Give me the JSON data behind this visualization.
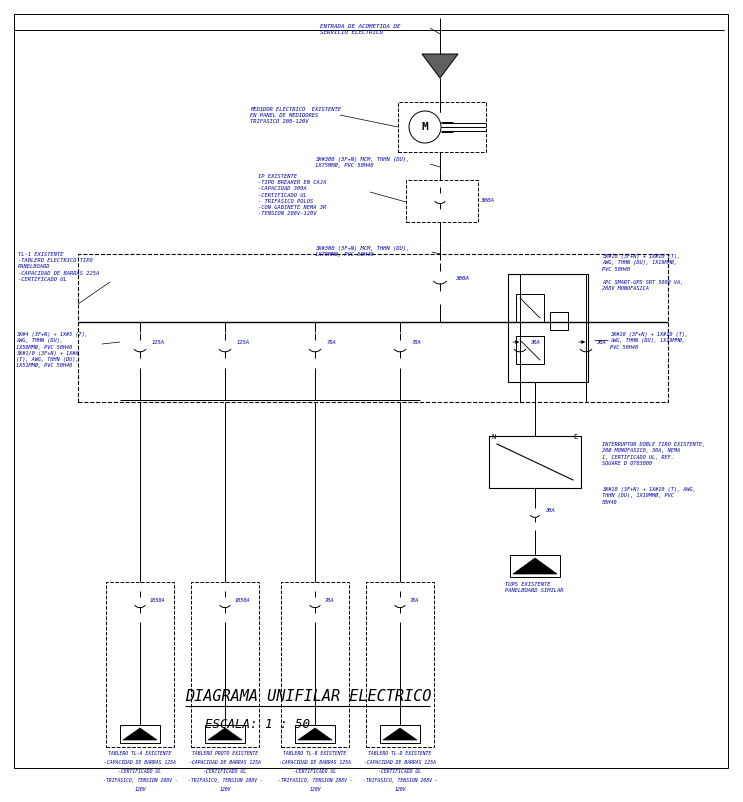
{
  "title": "DIAGRAMA UNIFILAR ELECTRICO",
  "subtitle": "ESCALA: 1 : 50",
  "bg_color": "#ffffff",
  "lc": "#000000",
  "bc": "#0000aa",
  "gray": "#808080",
  "ann": {
    "entrada": "ENTRADA DE ACOMETIDA DE\nSERVICIO ELECTRICO",
    "medidor": "MEDIDOR ELECTRICO  EXISTENTE\nEN PANEL DE MEDIDORES\nTRIFASICO 208-120V",
    "cable1": "3X#300 (3F+N) MCM, THHN (DU),\n1X75MMØ, PVC 50H40",
    "ip": "IP EXISTENTE\n-TIPO BREAKER EN CAJA\n-CAPACIDAD 300A\n-CERTIFICADO UL\n- TRIFASICO POLOS\n-CON GABINETE NEMA 3R\n-TENSION 208V-120V",
    "cable2": "3X#300 (3F+N) MCM, THHN (DU),\n1X75MMØ, PVC 50H40",
    "tl1": "TL-1 EXISTENTE\n-TABLERO ELECTRICO TIPO\nPANELBOARD\n-CAPACIDAD DE BARRAS 225A\n-CERTIFICADO UL",
    "cleft": "3X#4 (3F+N) + 1X#5 (T),\nAWG, THHN (DU),\n1X50MMØ, PVC 50H40\n3X#1/0 (3F+N) + 1X#6\n(T), AWG, THHN (DU),\n1X51MMØ, PVC 50H40",
    "cright": "3X#10 (3F+N) + 1X#10 (T),\nAWG, THHN (DU), 1X19MMØ,\nPVC 50H40",
    "apc": "APC SMART-UPS SRT 5000 VA,\n208V MONOFASICA",
    "interr": "INTERRUPTOR DOBLE TIRO EXISTENTE,\n20Ø MONOFASICO, 30A, NEMA\n1, CERTIFICADO UL, REF.\nSQUARE D QT03000",
    "cbottom": "3X#10 (3F+N) + 1X#10 (T), AWG,\nTHHN (DU), 1X19MMØ, PVC\n50H40",
    "tups": "TUPS EXISTENTE\nPANELBOARD SIMILAR",
    "tla": "TABLERO TL-A EXISTENTE\n-CAPACIDAD DE BARRAS 125A\n-CERTIFICADO UL\n-TRIFASICO, TENSION 208V -\n120V",
    "tlproto": "TABLERO PROTO EXISTENTE\n-CAPACIDAD DE BARRAS 125A\n-CERTIFICADO UL\n-TRIFASICO, TENSION 208V -\n120V",
    "tlb": "TABLERO TL-B EXISTENTE\n-CAPACIDAD DE BARRAS 125A\n-CERTIFICADO UL\n-TRIFASICO, TENSION 208V -\n120V",
    "tld": "TABLERO TL-D EXISTENTE\n-CAPACIDAD DE BARRAS 125A\n-CERTIFICADO UL\n-TRIFASICO, TENSION 208V -\n120V"
  }
}
